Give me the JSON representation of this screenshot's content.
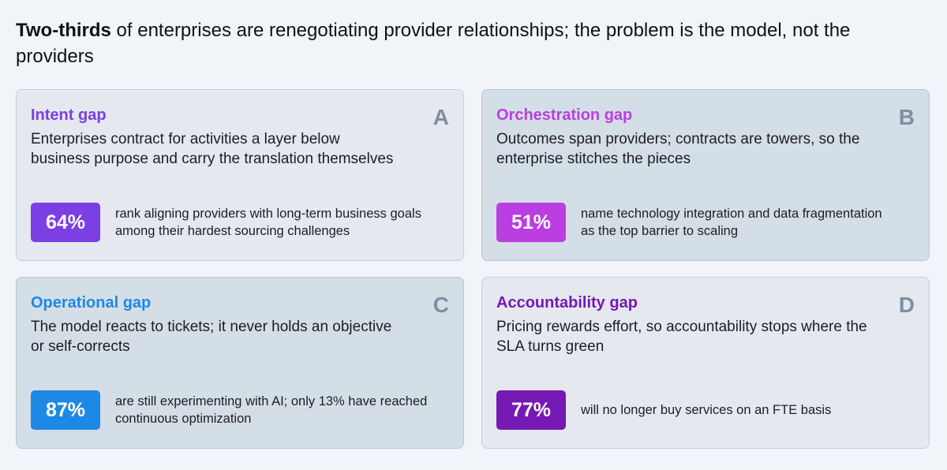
{
  "headline": {
    "strong": "Two-thirds",
    "rest": " of enterprises are renegotiating provider relationships; the problem is the model, not the providers"
  },
  "cards": [
    {
      "title": "Intent gap",
      "letter": "A",
      "description": "Enterprises contract for activities a layer below business purpose and carry the translation themselves",
      "stat": "64%",
      "stat_text": "rank aligning providers with long-term business goals among their hardest sourcing challenges",
      "accent": "#7b3fe4"
    },
    {
      "title": "Orchestration gap",
      "letter": "B",
      "description": "Outcomes span providers; contracts are towers, so the enterprise stitches the pieces",
      "stat": "51%",
      "stat_text": "name technology integration and data fragmentation as the top barrier to scaling",
      "accent": "#bb3ee0"
    },
    {
      "title": "Operational gap",
      "letter": "C",
      "description": "The model reacts to tickets; it never holds an objective or self-corrects",
      "stat": "87%",
      "stat_text": "are still experimenting with AI; only 13% have reached continuous optimization",
      "accent": "#1e88e5"
    },
    {
      "title": "Accountability gap",
      "letter": "D",
      "description": "Pricing rewards effort, so accountability stops where the SLA turns green",
      "stat": "77%",
      "stat_text": "will no longer buy services on an FTE basis",
      "accent": "#7519b5"
    }
  ]
}
